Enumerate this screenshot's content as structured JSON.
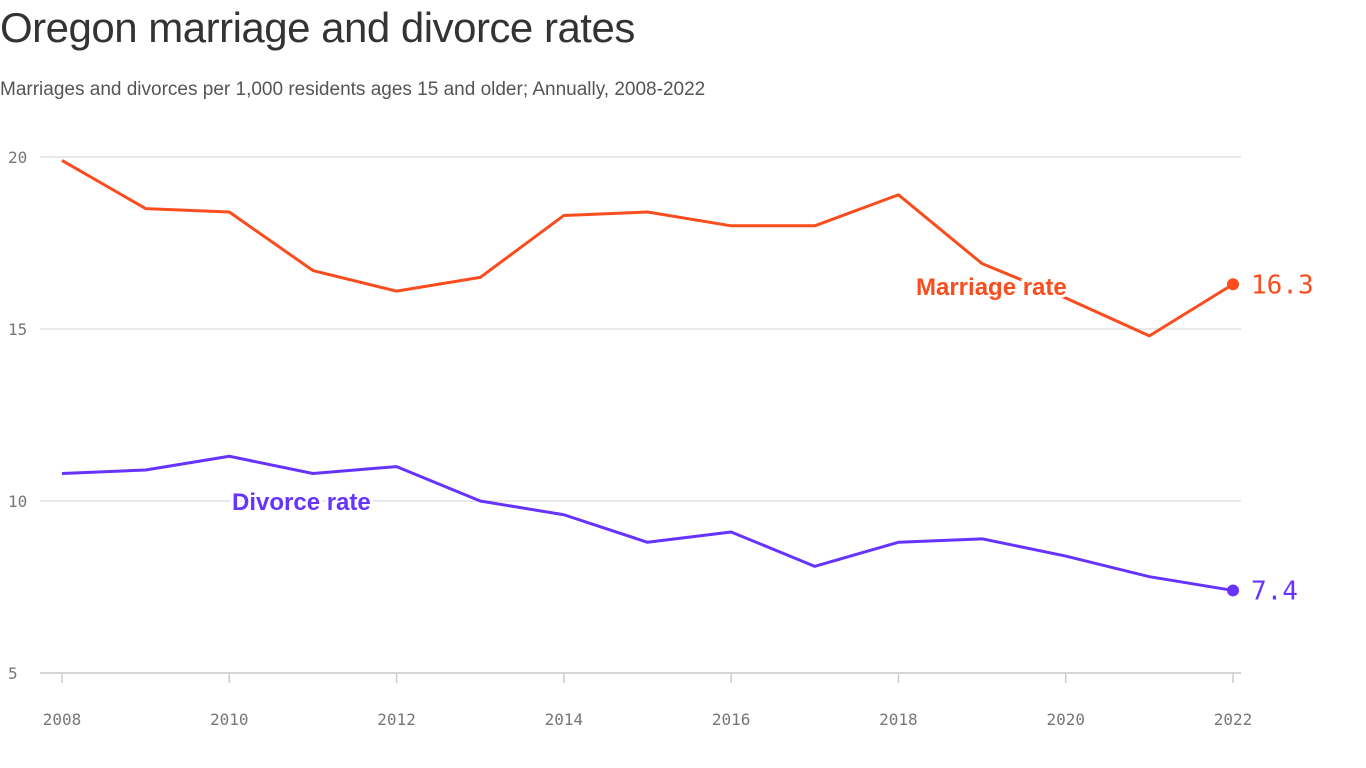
{
  "chart_data": {
    "type": "line",
    "title": "Oregon marriage and divorce rates",
    "subtitle": "Marriages and divorces per 1,000 residents ages 15 and older; Annually, 2008-2022",
    "x": [
      2008,
      2009,
      2010,
      2011,
      2012,
      2013,
      2014,
      2015,
      2016,
      2017,
      2018,
      2019,
      2020,
      2021,
      2022
    ],
    "x_ticks": [
      "2008",
      "2010",
      "2012",
      "2014",
      "2016",
      "2018",
      "2020",
      "2022"
    ],
    "y_ticks": [
      "5",
      "10",
      "15",
      "20"
    ],
    "ylim": [
      5,
      20
    ],
    "grid": true,
    "series": [
      {
        "name": "Marriage rate",
        "color": "#fa4d1e",
        "end_label": "16.3",
        "values": [
          19.9,
          18.5,
          18.4,
          16.7,
          16.1,
          16.5,
          18.3,
          18.4,
          18.0,
          18.0,
          18.9,
          16.9,
          15.9,
          14.8,
          16.3
        ]
      },
      {
        "name": "Divorce rate",
        "color": "#6633ff",
        "end_label": "7.4",
        "values": [
          10.8,
          10.9,
          11.3,
          10.8,
          11.0,
          10.0,
          9.6,
          8.8,
          9.1,
          8.1,
          8.8,
          8.9,
          8.4,
          7.8,
          7.4
        ]
      }
    ]
  }
}
